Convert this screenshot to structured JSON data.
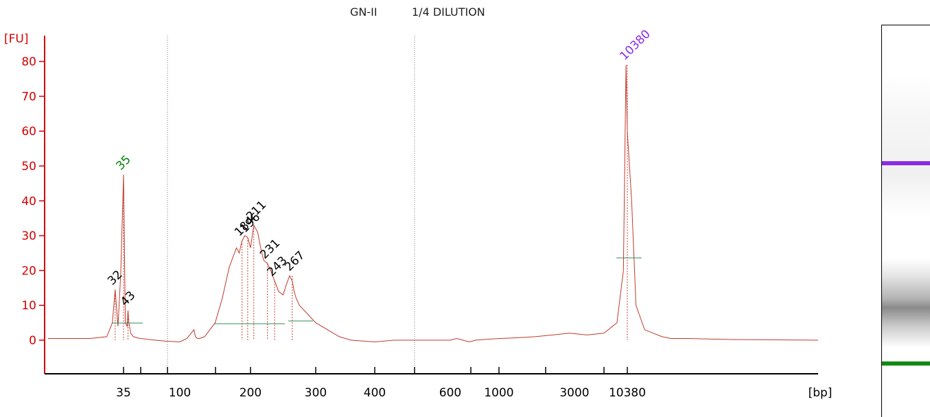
{
  "title": {
    "sample": "GN-II",
    "dilution": "1/4 DILUTION"
  },
  "chart_data": {
    "type": "line",
    "ylabel": "[FU]",
    "xlabel": "[bp]",
    "ylim": [
      -8,
      85
    ],
    "y_ticks": [
      0,
      10,
      20,
      30,
      40,
      50,
      60,
      70,
      80
    ],
    "x_tick_labels": [
      "35",
      "100",
      "200",
      "300",
      "400",
      "600",
      "1000",
      "3000",
      "10380"
    ],
    "colors": {
      "trace": "#c0392b",
      "axis": "#d40000",
      "lower_marker": "#008000",
      "upper_marker": "#8b2be2",
      "peak_label": "#000000",
      "baseline": "#2e8b57"
    },
    "trace": {
      "x": [
        10,
        25,
        31,
        33,
        34,
        35,
        36,
        37,
        39,
        41,
        42,
        43,
        45,
        48,
        55,
        60,
        65,
        85,
        100,
        110,
        120,
        122,
        125,
        128,
        135,
        150,
        160,
        170,
        180,
        184,
        188,
        192,
        196,
        200,
        205,
        211,
        215,
        220,
        226,
        231,
        237,
        243,
        250,
        255,
        260,
        264,
        267,
        270,
        275,
        285,
        300,
        320,
        340,
        360,
        400,
        450,
        500,
        600,
        650,
        700,
        750,
        800,
        900,
        1000,
        1100,
        1200,
        1300,
        1400,
        1500,
        1600,
        1700,
        1750,
        1770,
        1780,
        1785,
        1790,
        1800,
        1810,
        1820,
        1830,
        1850,
        1900,
        2000
      ],
      "y": [
        0.5,
        0.5,
        1,
        5,
        14.5,
        4,
        19,
        47.5,
        5,
        4,
        8.5,
        5,
        2,
        1,
        0.5,
        0.4,
        0.2,
        -0.3,
        -0.5,
        0.5,
        3,
        1,
        0.5,
        0.5,
        1,
        5,
        12,
        21,
        26.5,
        25,
        28.5,
        30,
        29.5,
        26.5,
        33,
        31,
        27,
        23,
        22,
        20,
        17,
        14,
        13,
        16,
        18.5,
        17,
        14,
        12,
        10,
        8,
        5,
        3,
        1,
        0,
        -0.5,
        0,
        0,
        0,
        0.5,
        0,
        -0.5,
        0,
        0.3,
        0.5,
        0.7,
        1,
        1.5,
        2,
        1.5,
        2,
        5,
        20,
        79,
        60,
        40,
        10,
        3,
        2,
        1,
        0.5,
        0.5,
        0.2,
        0
      ]
    },
    "peaks": [
      {
        "label": "32",
        "x": 34,
        "y": 14.5
      },
      {
        "label": "35",
        "x": 37,
        "y": 47.5,
        "marker": "lower"
      },
      {
        "label": "43",
        "x": 42,
        "y": 8.5
      },
      {
        "label": "184",
        "x": 188,
        "y": 28.5
      },
      {
        "label": "196",
        "x": 196,
        "y": 29.5
      },
      {
        "label": "211",
        "x": 205,
        "y": 33
      },
      {
        "label": "231",
        "x": 226,
        "y": 22
      },
      {
        "label": "243",
        "x": 237,
        "y": 17
      },
      {
        "label": "267",
        "x": 264,
        "y": 18.5
      },
      {
        "label": "10380",
        "x": 1780,
        "y": 79,
        "marker": "upper"
      }
    ]
  }
}
